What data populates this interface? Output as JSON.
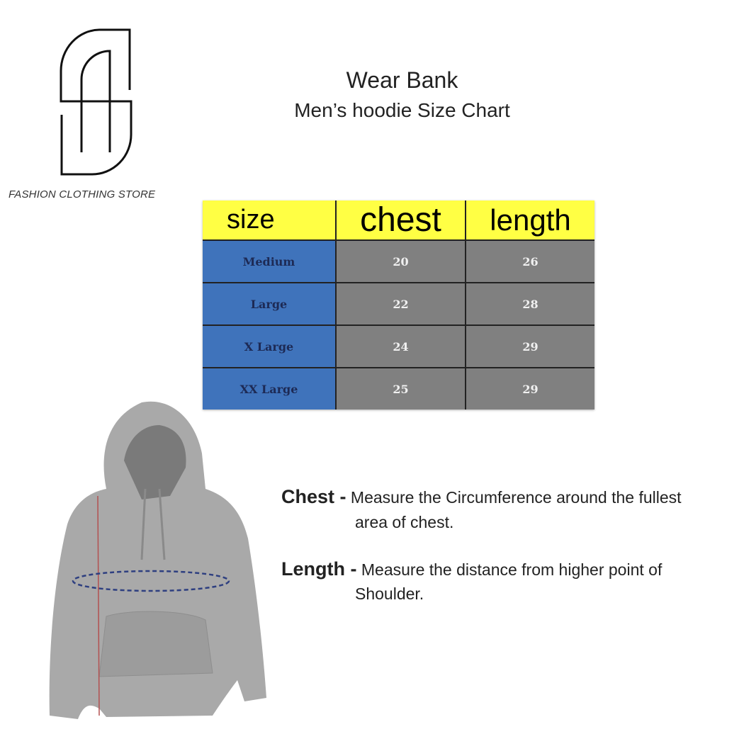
{
  "brand": {
    "logo_letters": "SA",
    "store_name": "FASHION CLOTHING STORE"
  },
  "header": {
    "title": "Wear Bank",
    "subtitle": "Men’s hoodie Size Chart"
  },
  "size_table": {
    "columns": [
      "size",
      "chest",
      "length"
    ],
    "rows": [
      {
        "size": "Medium",
        "chest": "20",
        "length": "26"
      },
      {
        "size": "Large",
        "chest": "22",
        "length": "28"
      },
      {
        "size": "X Large",
        "chest": "24",
        "length": "29"
      },
      {
        "size": "XX Large",
        "chest": "25",
        "length": "29"
      }
    ],
    "colors": {
      "header": "#ffff44",
      "size_col": "#3f73bb",
      "values": "#808080"
    }
  },
  "instructions": {
    "chest": {
      "label": "Chest -",
      "text": "Measure the Circumference around the fullest",
      "text_cont": "area of chest."
    },
    "length": {
      "label": "Length -",
      "text": "Measure the distance from higher point of",
      "text_cont": "Shoulder."
    }
  }
}
